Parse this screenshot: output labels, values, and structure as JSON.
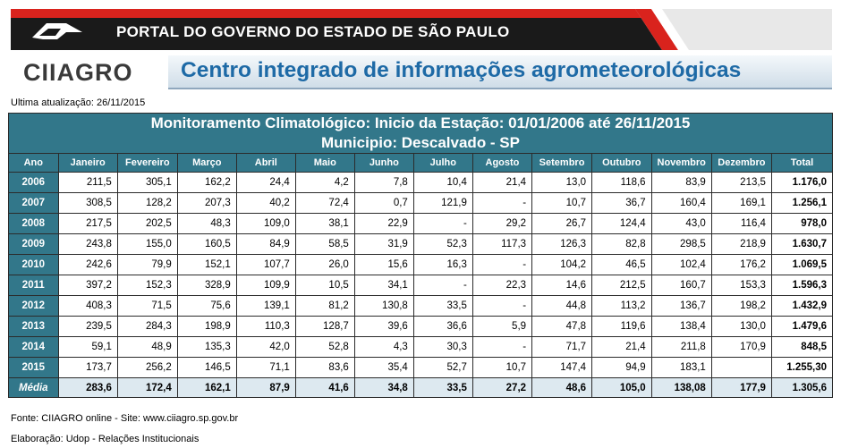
{
  "gov_banner": {
    "title": "PORTAL DO GOVERNO DO ESTADO DE SÃO PAULO"
  },
  "ciiagro": {
    "logo": "CIIAGRO",
    "tagline": "Centro integrado de informações agrometeorológicas"
  },
  "updated": "Ultima atualização: 26/11/2015",
  "table": {
    "title_line1": "Monitoramento Climatológico: Inicio da Estação: 01/01/2006 até 26/11/2015",
    "title_line2": "Municipio: Descalvado - SP",
    "headers": [
      "Ano",
      "Janeiro",
      "Fevereiro",
      "Março",
      "Abril",
      "Maio",
      "Junho",
      "Julho",
      "Agosto",
      "Setembro",
      "Outubro",
      "Novembro",
      "Dezembro",
      "Total"
    ],
    "rows": [
      [
        "2006",
        "211,5",
        "305,1",
        "162,2",
        "24,4",
        "4,2",
        "7,8",
        "10,4",
        "21,4",
        "13,0",
        "118,6",
        "83,9",
        "213,5",
        "1.176,0"
      ],
      [
        "2007",
        "308,5",
        "128,2",
        "207,3",
        "40,2",
        "72,4",
        "0,7",
        "121,9",
        "-",
        "10,7",
        "36,7",
        "160,4",
        "169,1",
        "1.256,1"
      ],
      [
        "2008",
        "217,5",
        "202,5",
        "48,3",
        "109,0",
        "38,1",
        "22,9",
        "-",
        "29,2",
        "26,7",
        "124,4",
        "43,0",
        "116,4",
        "978,0"
      ],
      [
        "2009",
        "243,8",
        "155,0",
        "160,5",
        "84,9",
        "58,5",
        "31,9",
        "52,3",
        "117,3",
        "126,3",
        "82,8",
        "298,5",
        "218,9",
        "1.630,7"
      ],
      [
        "2010",
        "242,6",
        "79,9",
        "152,1",
        "107,7",
        "26,0",
        "15,6",
        "16,3",
        "-",
        "104,2",
        "46,5",
        "102,4",
        "176,2",
        "1.069,5"
      ],
      [
        "2011",
        "397,2",
        "152,3",
        "328,9",
        "109,9",
        "10,5",
        "34,1",
        "-",
        "22,3",
        "14,6",
        "212,5",
        "160,7",
        "153,3",
        "1.596,3"
      ],
      [
        "2012",
        "408,3",
        "71,5",
        "75,6",
        "139,1",
        "81,2",
        "130,8",
        "33,5",
        "-",
        "44,8",
        "113,2",
        "136,7",
        "198,2",
        "1.432,9"
      ],
      [
        "2013",
        "239,5",
        "284,3",
        "198,9",
        "110,3",
        "128,7",
        "39,6",
        "36,6",
        "5,9",
        "47,8",
        "119,6",
        "138,4",
        "130,0",
        "1.479,6"
      ],
      [
        "2014",
        "59,1",
        "48,9",
        "135,3",
        "42,0",
        "52,8",
        "4,3",
        "30,3",
        "-",
        "71,7",
        "21,4",
        "211,8",
        "170,9",
        "848,5"
      ],
      [
        "2015",
        "173,7",
        "256,2",
        "146,5",
        "71,1",
        "83,6",
        "35,4",
        "52,7",
        "10,7",
        "147,4",
        "94,9",
        "183,1",
        "",
        "1.255,30"
      ]
    ],
    "media": [
      "Média",
      "283,6",
      "172,4",
      "162,1",
      "87,9",
      "41,6",
      "34,8",
      "33,5",
      "27,2",
      "48,6",
      "105,0",
      "138,08",
      "177,9",
      "1.305,6"
    ]
  },
  "footer": {
    "source": "Fonte: CIIAGRO online - Site: www.ciiagro.sp.gov.br",
    "elaboration": "Elaboração: Udop - Relações Institucionais"
  }
}
